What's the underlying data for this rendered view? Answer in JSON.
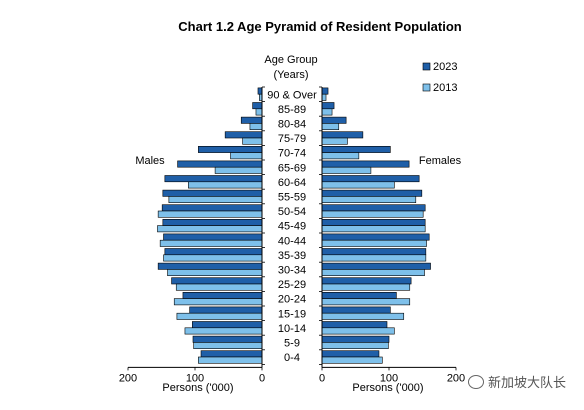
{
  "chart_data": {
    "type": "bar",
    "title": "Chart 1.2  Age Pyramid of Resident Population",
    "age_group_label_line1": "Age Group",
    "age_group_label_line2": "(Years)",
    "left_label": "Males",
    "right_label": "Females",
    "xlabel_left": "Persons ('000)",
    "xlabel_right": "Persons ('000)",
    "xlim": [
      0,
      200
    ],
    "xticks": [
      "200",
      "100",
      "0"
    ],
    "xticks_right": [
      "0",
      "100",
      "200"
    ],
    "legend_placement": "top-right",
    "categories": [
      "0-4",
      "5-9",
      "10-14",
      "15-19",
      "20-24",
      "25-29",
      "30-34",
      "35-39",
      "40-44",
      "45-49",
      "50-54",
      "55-59",
      "60-64",
      "65-69",
      "70-74",
      "75-79",
      "80-84",
      "85-89",
      "90 & Over"
    ],
    "series": [
      {
        "name": "2023",
        "color": "#1f5fa8",
        "males": [
          91,
          103,
          104,
          108,
          118,
          135,
          155,
          145,
          147,
          148,
          149,
          148,
          145,
          126,
          95,
          55,
          31,
          14,
          6
        ],
        "females": [
          85,
          100,
          97,
          102,
          111,
          133,
          162,
          155,
          160,
          154,
          154,
          149,
          145,
          130,
          102,
          61,
          36,
          18,
          9
        ]
      },
      {
        "name": "2013",
        "color": "#7ec0ea",
        "males": [
          95,
          102,
          115,
          127,
          131,
          128,
          141,
          147,
          152,
          156,
          155,
          139,
          110,
          70,
          47,
          29,
          18,
          9,
          4
        ],
        "females": [
          90,
          99,
          108,
          122,
          131,
          131,
          153,
          155,
          156,
          154,
          151,
          140,
          108,
          73,
          55,
          38,
          25,
          15,
          6
        ]
      }
    ]
  },
  "watermark": {
    "text": "新加坡大队长",
    "icon": "wechat-icon"
  }
}
